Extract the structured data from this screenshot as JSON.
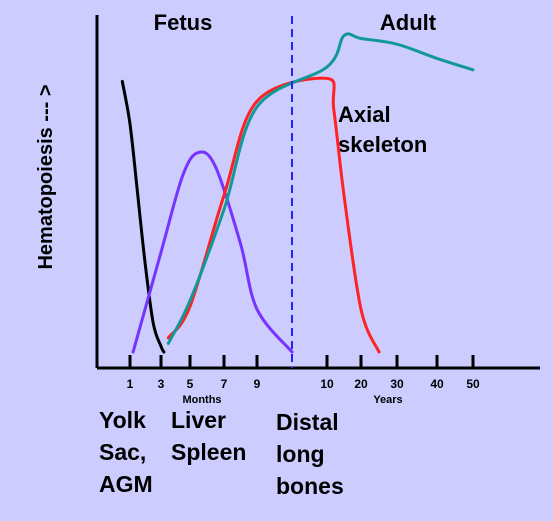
{
  "chart_data": {
    "type": "line",
    "ylabel": "Hematopoiesis  --- >",
    "region_labels": [
      "Fetus",
      "Adult"
    ],
    "x_ticks": {
      "months": [
        "1",
        "3",
        "5",
        "7",
        "9"
      ],
      "years": [
        "10",
        "20",
        "30",
        "40",
        "50"
      ]
    },
    "x_unit_labels": {
      "months": "Months",
      "years": "Years"
    },
    "series": [
      {
        "color": "#000000",
        "points": [
          [
            0.5,
            95
          ],
          [
            1,
            80
          ],
          [
            1.5,
            55
          ],
          [
            2,
            30
          ],
          [
            2.5,
            10
          ],
          [
            3,
            2
          ],
          [
            3.2,
            0
          ]
        ]
      },
      {
        "color": "#7733ff",
        "points": [
          [
            1.2,
            0
          ],
          [
            3,
            35
          ],
          [
            4.5,
            62
          ],
          [
            5.5,
            70
          ],
          [
            6.5,
            65
          ],
          [
            8,
            38
          ],
          [
            9,
            15
          ],
          [
            9.5,
            0
          ]
        ]
      },
      {
        "color": "#ff2222",
        "points": [
          [
            3.5,
            5
          ],
          [
            5,
            16
          ],
          [
            7,
            55
          ],
          [
            9,
            88
          ],
          [
            10,
            96
          ],
          [
            12,
            85
          ],
          [
            15,
            55
          ],
          [
            20,
            15
          ],
          [
            25,
            0
          ]
        ]
      },
      {
        "color": "#119999",
        "points": [
          [
            3.5,
            3
          ],
          [
            5,
            18
          ],
          [
            7,
            50
          ],
          [
            9,
            86
          ],
          [
            10,
            100
          ],
          [
            15,
            111
          ],
          [
            20,
            110
          ],
          [
            30,
            108
          ],
          [
            40,
            103
          ],
          [
            50,
            99
          ]
        ]
      }
    ],
    "curve_labels": [
      "Axial\nskeleton"
    ],
    "divider": {
      "x": 9.5,
      "color": "#2222ff",
      "style": "dashed"
    }
  },
  "bottom_labels": {
    "yolk": [
      "Yolk",
      "Sac,",
      "AGM"
    ],
    "liver": [
      "Liver",
      "Spleen"
    ],
    "distal": [
      "Distal",
      "long",
      "bones"
    ]
  },
  "colors": {
    "background": "#ccccff",
    "axis": "#000000"
  }
}
